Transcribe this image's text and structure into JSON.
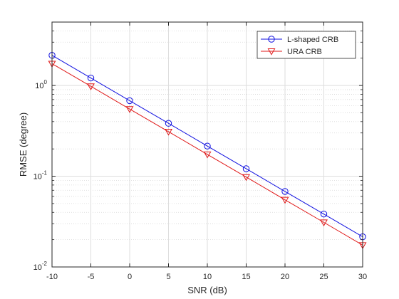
{
  "chart_data": {
    "type": "line",
    "xlabel": "SNR (dB)",
    "ylabel": "RMSE (degree)",
    "x": [
      -10,
      -5,
      0,
      5,
      10,
      15,
      20,
      25,
      30
    ],
    "xlim": [
      -10,
      30
    ],
    "ylim": [
      0.01,
      5
    ],
    "yscale": "log",
    "grid": true,
    "legend_position": "top-right",
    "x_ticks": [
      -10,
      -5,
      0,
      5,
      10,
      15,
      20,
      25,
      30
    ],
    "x_tick_labels": [
      "-10",
      "-5",
      "0",
      "5",
      "10",
      "15",
      "20",
      "25",
      "30"
    ],
    "y_ticks": [
      {
        "value": 0.01,
        "base": "10",
        "exp": "-2"
      },
      {
        "value": 0.1,
        "base": "10",
        "exp": "-1"
      },
      {
        "value": 1,
        "base": "10",
        "exp": "0"
      }
    ],
    "series": [
      {
        "name": "L-shaped CRB",
        "color": "#1010e0",
        "marker": "circle",
        "values": [
          2.15,
          1.21,
          0.68,
          0.383,
          0.215,
          0.121,
          0.068,
          0.0383,
          0.0215
        ]
      },
      {
        "name": "URA CRB",
        "color": "#e01818",
        "marker": "triangle-down",
        "values": [
          1.74,
          0.98,
          0.55,
          0.31,
          0.174,
          0.098,
          0.055,
          0.031,
          0.0174
        ]
      }
    ]
  }
}
